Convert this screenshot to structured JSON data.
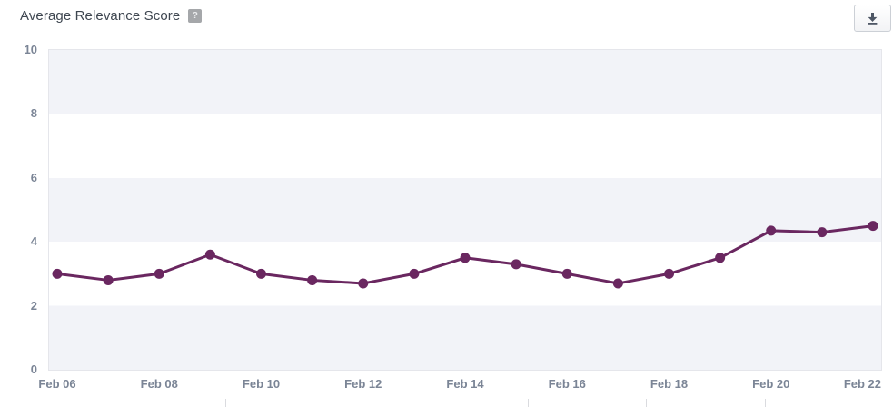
{
  "header": {
    "title": "Average Relevance Score",
    "help_badge": "?"
  },
  "icons": {
    "help": "question-mark-icon",
    "download": "download-icon"
  },
  "chart_data": {
    "type": "line",
    "title": "Average Relevance Score",
    "categories": [
      "Feb 06",
      "Feb 07",
      "Feb 08",
      "Feb 09",
      "Feb 10",
      "Feb 11",
      "Feb 12",
      "Feb 13",
      "Feb 14",
      "Feb 15",
      "Feb 16",
      "Feb 17",
      "Feb 18",
      "Feb 19",
      "Feb 20",
      "Feb 21",
      "Feb 22"
    ],
    "values": [
      3.0,
      2.8,
      3.0,
      3.6,
      3.0,
      2.8,
      2.7,
      3.0,
      3.5,
      3.3,
      3.0,
      2.7,
      3.0,
      3.5,
      4.35,
      4.3,
      4.5
    ],
    "x_tick_labels": [
      "Feb 06",
      "Feb 08",
      "Feb 10",
      "Feb 12",
      "Feb 14",
      "Feb 16",
      "Feb 18",
      "Feb 20",
      "Feb 22"
    ],
    "y_ticks": [
      0,
      2,
      4,
      6,
      8,
      10
    ],
    "ylim": [
      0,
      10
    ],
    "xlabel": "",
    "ylabel": "",
    "legend": "none",
    "grid": "horizontal-bands-every-2-units",
    "line_color": "#6a2760",
    "point_color": "#6a2760",
    "band_color": "#f2f3f8",
    "plot_border_color": "#e5e6eb",
    "axis_label_color": "#7b8596"
  }
}
